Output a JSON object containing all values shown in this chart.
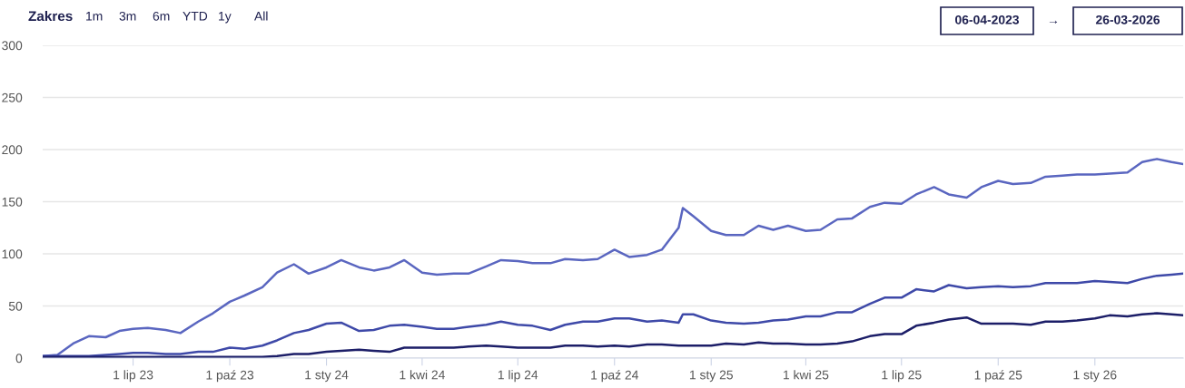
{
  "chart_data": {
    "type": "line",
    "x": [
      "2023-04-06",
      "2023-04-20",
      "2023-05-05",
      "2023-05-20",
      "2023-06-05",
      "2023-06-18",
      "2023-07-01",
      "2023-07-15",
      "2023-08-01",
      "2023-08-15",
      "2023-09-01",
      "2023-09-15",
      "2023-10-01",
      "2023-10-15",
      "2023-11-01",
      "2023-11-15",
      "2023-12-01",
      "2023-12-15",
      "2024-01-01",
      "2024-01-15",
      "2024-02-01",
      "2024-02-15",
      "2024-03-01",
      "2024-03-15",
      "2024-04-01",
      "2024-04-15",
      "2024-05-01",
      "2024-05-15",
      "2024-06-01",
      "2024-06-15",
      "2024-07-01",
      "2024-07-15",
      "2024-08-01",
      "2024-08-15",
      "2024-09-01",
      "2024-09-15",
      "2024-10-01",
      "2024-10-15",
      "2024-11-01",
      "2024-11-15",
      "2024-12-01",
      "2024-12-05",
      "2024-12-15",
      "2025-01-01",
      "2025-01-15",
      "2025-02-01",
      "2025-02-15",
      "2025-03-01",
      "2025-03-15",
      "2025-04-01",
      "2025-04-15",
      "2025-05-01",
      "2025-05-15",
      "2025-06-01",
      "2025-06-15",
      "2025-07-01",
      "2025-07-15",
      "2025-08-01",
      "2025-08-15",
      "2025-09-01",
      "2025-09-15",
      "2025-10-01",
      "2025-10-15",
      "2025-11-01",
      "2025-11-15",
      "2025-12-01",
      "2025-12-15",
      "2026-01-01",
      "2026-01-15",
      "2026-02-01",
      "2026-02-15",
      "2026-03-01",
      "2026-03-15",
      "2026-03-26"
    ],
    "series": [
      {
        "color": "#5a66c0",
        "values": [
          2,
          3,
          14,
          21,
          20,
          26,
          28,
          29,
          27,
          24,
          35,
          43,
          54,
          60,
          68,
          82,
          90,
          81,
          87,
          94,
          87,
          84,
          87,
          94,
          82,
          80,
          81,
          81,
          88,
          94,
          93,
          91,
          91,
          95,
          94,
          95,
          104,
          97,
          99,
          104,
          125,
          144,
          136,
          122,
          118,
          118,
          127,
          123,
          127,
          122,
          123,
          133,
          134,
          145,
          149,
          148,
          157,
          164,
          157,
          154,
          164,
          170,
          167,
          168,
          174,
          175,
          176,
          176,
          177,
          178,
          188,
          191,
          188,
          186
        ]
      },
      {
        "color": "#3e49a8",
        "values": [
          2,
          2,
          2,
          2,
          3,
          4,
          5,
          5,
          4,
          4,
          6,
          6,
          10,
          9,
          12,
          17,
          24,
          27,
          33,
          34,
          26,
          27,
          31,
          32,
          30,
          28,
          28,
          30,
          32,
          35,
          32,
          31,
          27,
          32,
          35,
          35,
          38,
          38,
          35,
          36,
          34,
          42,
          42,
          36,
          34,
          33,
          34,
          36,
          37,
          40,
          40,
          44,
          44,
          52,
          58,
          58,
          66,
          64,
          70,
          67,
          68,
          69,
          68,
          69,
          72,
          72,
          72,
          74,
          73,
          72,
          76,
          79,
          80,
          81
        ]
      },
      {
        "color": "#1c1e68",
        "values": [
          1,
          1,
          1,
          1,
          1,
          1,
          1,
          1,
          1,
          1,
          1,
          1,
          1,
          1,
          1,
          2,
          4,
          4,
          6,
          7,
          8,
          7,
          6,
          10,
          10,
          10,
          10,
          11,
          12,
          11,
          10,
          10,
          10,
          12,
          12,
          11,
          12,
          11,
          13,
          13,
          12,
          12,
          12,
          12,
          14,
          13,
          15,
          14,
          14,
          13,
          13,
          14,
          16,
          21,
          23,
          23,
          31,
          34,
          37,
          39,
          33,
          33,
          33,
          32,
          35,
          35,
          36,
          38,
          41,
          40,
          42,
          43,
          42,
          41
        ]
      }
    ],
    "xlim": [
      "2023-04-06",
      "2026-03-26"
    ],
    "xticks": [
      {
        "value": "2023-07-01",
        "label": "1 lip 23"
      },
      {
        "value": "2023-10-01",
        "label": "1 paź 23"
      },
      {
        "value": "2024-01-01",
        "label": "1 sty 24"
      },
      {
        "value": "2024-04-01",
        "label": "1 kwi 24"
      },
      {
        "value": "2024-07-01",
        "label": "1 lip 24"
      },
      {
        "value": "2024-10-01",
        "label": "1 paź 24"
      },
      {
        "value": "2025-01-01",
        "label": "1 sty 25"
      },
      {
        "value": "2025-04-01",
        "label": "1 kwi 25"
      },
      {
        "value": "2025-07-01",
        "label": "1 lip 25"
      },
      {
        "value": "2025-10-01",
        "label": "1 paź 25"
      },
      {
        "value": "2026-01-01",
        "label": "1 sty 26"
      }
    ],
    "ylim": [
      0,
      300
    ],
    "yticks": [
      0,
      50,
      100,
      150,
      200,
      250,
      300
    ],
    "grid": "y",
    "marker": "none",
    "line_style": "solid",
    "annotations": [
      "Zakres",
      "1m",
      "3m",
      "6m",
      "YTD",
      "1y",
      "All",
      "06-04-2023",
      "→",
      "26-03-2026"
    ]
  }
}
